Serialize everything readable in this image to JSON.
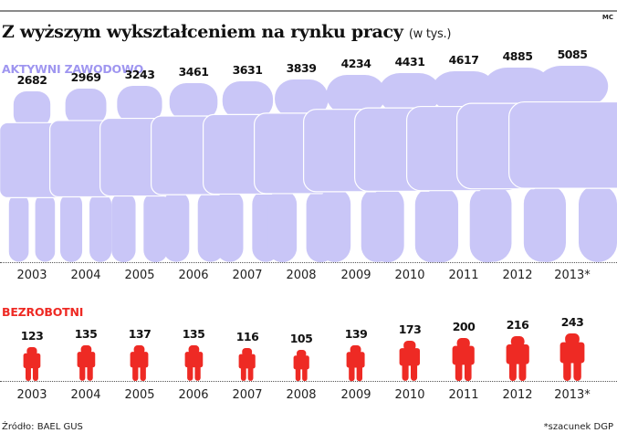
{
  "header": {
    "credit": "MC",
    "title": "Z wyższym wykształceniem na rynku pracy",
    "unit": "(w tys.)"
  },
  "sections": {
    "active_label": "AKTYWNI ZAWODOWO",
    "unemployed_label": "BEZROBOTNI"
  },
  "colors": {
    "active": "#c9c6f7",
    "active_label": "#9f96f0",
    "unemployed": "#ee2a24"
  },
  "years": [
    "2003",
    "2004",
    "2005",
    "2006",
    "2007",
    "2008",
    "2009",
    "2010",
    "2011",
    "2012",
    "2013*"
  ],
  "active": {
    "values": [
      "2682",
      "2969",
      "3243",
      "3461",
      "3631",
      "3839",
      "4234",
      "4431",
      "4617",
      "4885",
      "5085"
    ]
  },
  "unemployed": {
    "values": [
      "123",
      "135",
      "137",
      "135",
      "116",
      "105",
      "139",
      "173",
      "200",
      "216",
      "243"
    ]
  },
  "footer": {
    "source": "Źródło: BAEL GUS",
    "note": "*szacunek DGP"
  },
  "chart_data": [
    {
      "type": "bar",
      "title": "Z wyższym wykształceniem na rynku pracy (w tys.) — AKTYWNI ZAWODOWO",
      "categories": [
        "2003",
        "2004",
        "2005",
        "2006",
        "2007",
        "2008",
        "2009",
        "2010",
        "2011",
        "2012",
        "2013*"
      ],
      "values": [
        2682,
        2969,
        3243,
        3461,
        3631,
        3839,
        4234,
        4431,
        4617,
        4885,
        5085
      ],
      "xlabel": "",
      "ylabel": "tys.",
      "grid": false,
      "legend": "none",
      "annotations": [
        "2013* = szacunek DGP"
      ]
    },
    {
      "type": "bar",
      "title": "Z wyższym wykształceniem na rynku pracy (w tys.) — BEZROBOTNI",
      "categories": [
        "2003",
        "2004",
        "2005",
        "2006",
        "2007",
        "2008",
        "2009",
        "2010",
        "2011",
        "2012",
        "2013*"
      ],
      "values": [
        123,
        135,
        137,
        135,
        116,
        105,
        139,
        173,
        200,
        216,
        243
      ],
      "xlabel": "",
      "ylabel": "tys.",
      "grid": false,
      "legend": "none",
      "annotations": [
        "2013* = szacunek DGP"
      ]
    }
  ]
}
